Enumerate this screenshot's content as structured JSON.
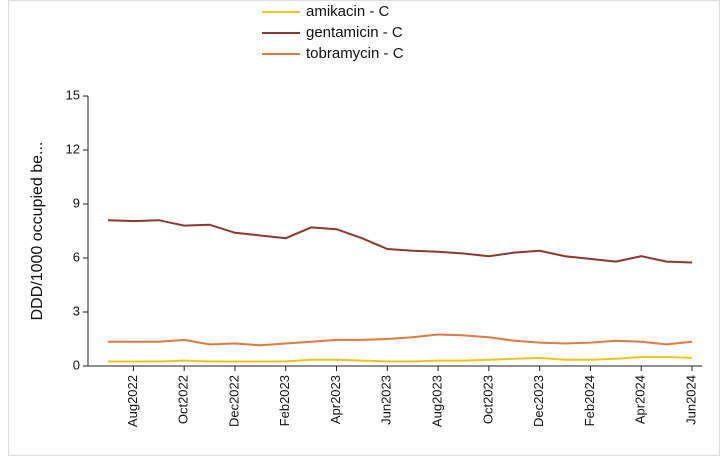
{
  "chart_data": {
    "type": "line",
    "y_label": "DDD/1000  occupied  be...",
    "categories": [
      null,
      "Aug2022",
      null,
      "Oct2022",
      null,
      "Dec2022",
      null,
      "Feb2023",
      null,
      "Apr2023",
      null,
      "Jun2023",
      null,
      "Aug2023",
      null,
      "Oct2023",
      null,
      "Dec2023",
      null,
      "Feb2024",
      null,
      "Apr2024",
      null,
      "Jun2024"
    ],
    "ylim": [
      0,
      15
    ],
    "yticks": [
      0,
      3,
      6,
      9,
      12,
      15
    ],
    "series": [
      {
        "name": "amikacin - C",
        "color": "#f2c318",
        "values": [
          0.25,
          0.25,
          0.25,
          0.3,
          0.25,
          0.25,
          0.25,
          0.25,
          0.35,
          0.35,
          0.3,
          0.25,
          0.25,
          0.3,
          0.3,
          0.35,
          0.4,
          0.45,
          0.35,
          0.35,
          0.4,
          0.5,
          0.5,
          0.45
        ]
      },
      {
        "name": "gentamicin - C",
        "color": "#8b3a2a",
        "values": [
          8.1,
          8.05,
          8.1,
          7.8,
          7.85,
          7.4,
          7.25,
          7.1,
          7.7,
          7.6,
          7.1,
          6.5,
          6.4,
          6.35,
          6.25,
          6.1,
          6.3,
          6.4,
          6.1,
          5.95,
          5.8,
          6.1,
          5.8,
          5.75
        ]
      },
      {
        "name": "tobramycin - C",
        "color": "#e07a3f",
        "values": [
          1.35,
          1.35,
          1.35,
          1.45,
          1.2,
          1.25,
          1.15,
          1.25,
          1.35,
          1.45,
          1.45,
          1.5,
          1.6,
          1.75,
          1.7,
          1.6,
          1.4,
          1.3,
          1.25,
          1.3,
          1.4,
          1.35,
          1.2,
          1.35
        ]
      }
    ]
  }
}
